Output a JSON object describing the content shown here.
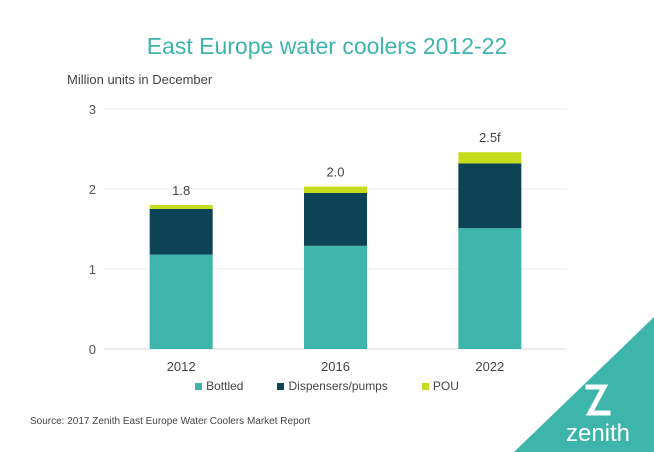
{
  "chart_data": {
    "type": "bar",
    "stacked": true,
    "title": "East Europe water coolers 2012-22",
    "ylabel": "Million units in December",
    "xlabel": "",
    "categories": [
      "2012",
      "2016",
      "2022"
    ],
    "series": [
      {
        "name": "Bottled",
        "color": "#3db5ab",
        "values": [
          1.18,
          1.29,
          1.51
        ]
      },
      {
        "name": "Dispensers/pumps",
        "color": "#0d4455",
        "values": [
          0.57,
          0.66,
          0.81
        ]
      },
      {
        "name": "POU",
        "color": "#c5dc1e",
        "values": [
          0.05,
          0.08,
          0.14
        ]
      }
    ],
    "total_labels": [
      "1.8",
      "2.0",
      "2.5f"
    ],
    "ylim": [
      0,
      3
    ],
    "yticks": [
      "0",
      "1",
      "2",
      "3"
    ],
    "grid": true,
    "legend": "bottom"
  },
  "source": "Source: 2017 Zenith East Europe Water Coolers Market Report",
  "logo": {
    "text": "zenith",
    "color": "#3db5ab"
  }
}
